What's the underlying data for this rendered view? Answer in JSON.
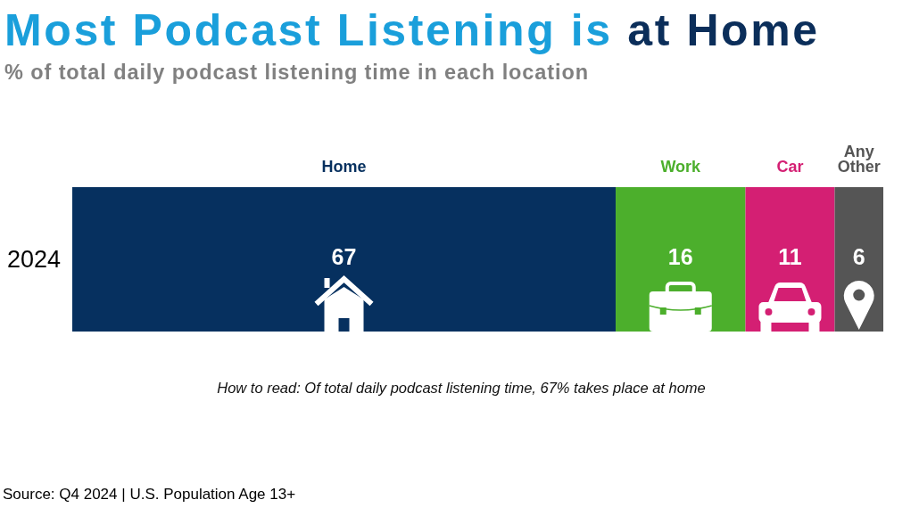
{
  "chart_data": {
    "type": "bar",
    "orientation": "horizontal",
    "stacked": true,
    "data_labels": true,
    "title": "Most Podcast Listening is at Home",
    "subtitle": "% of total daily podcast listening time in each location",
    "categories": [
      "2024"
    ],
    "series": [
      {
        "name": "Home",
        "color": "#06305f",
        "values": [
          67
        ]
      },
      {
        "name": "Work",
        "color": "#4caf2c",
        "values": [
          16
        ]
      },
      {
        "name": "Car",
        "color": "#d41f73",
        "values": [
          11
        ]
      },
      {
        "name": "Any Other",
        "color": "#555555",
        "values": [
          6
        ]
      }
    ],
    "annotations": [
      "How to read: Of total daily podcast listening time, 67% takes place at home",
      "Source: Q4 2024 | U.S. Population Age 13+"
    ]
  }
}
